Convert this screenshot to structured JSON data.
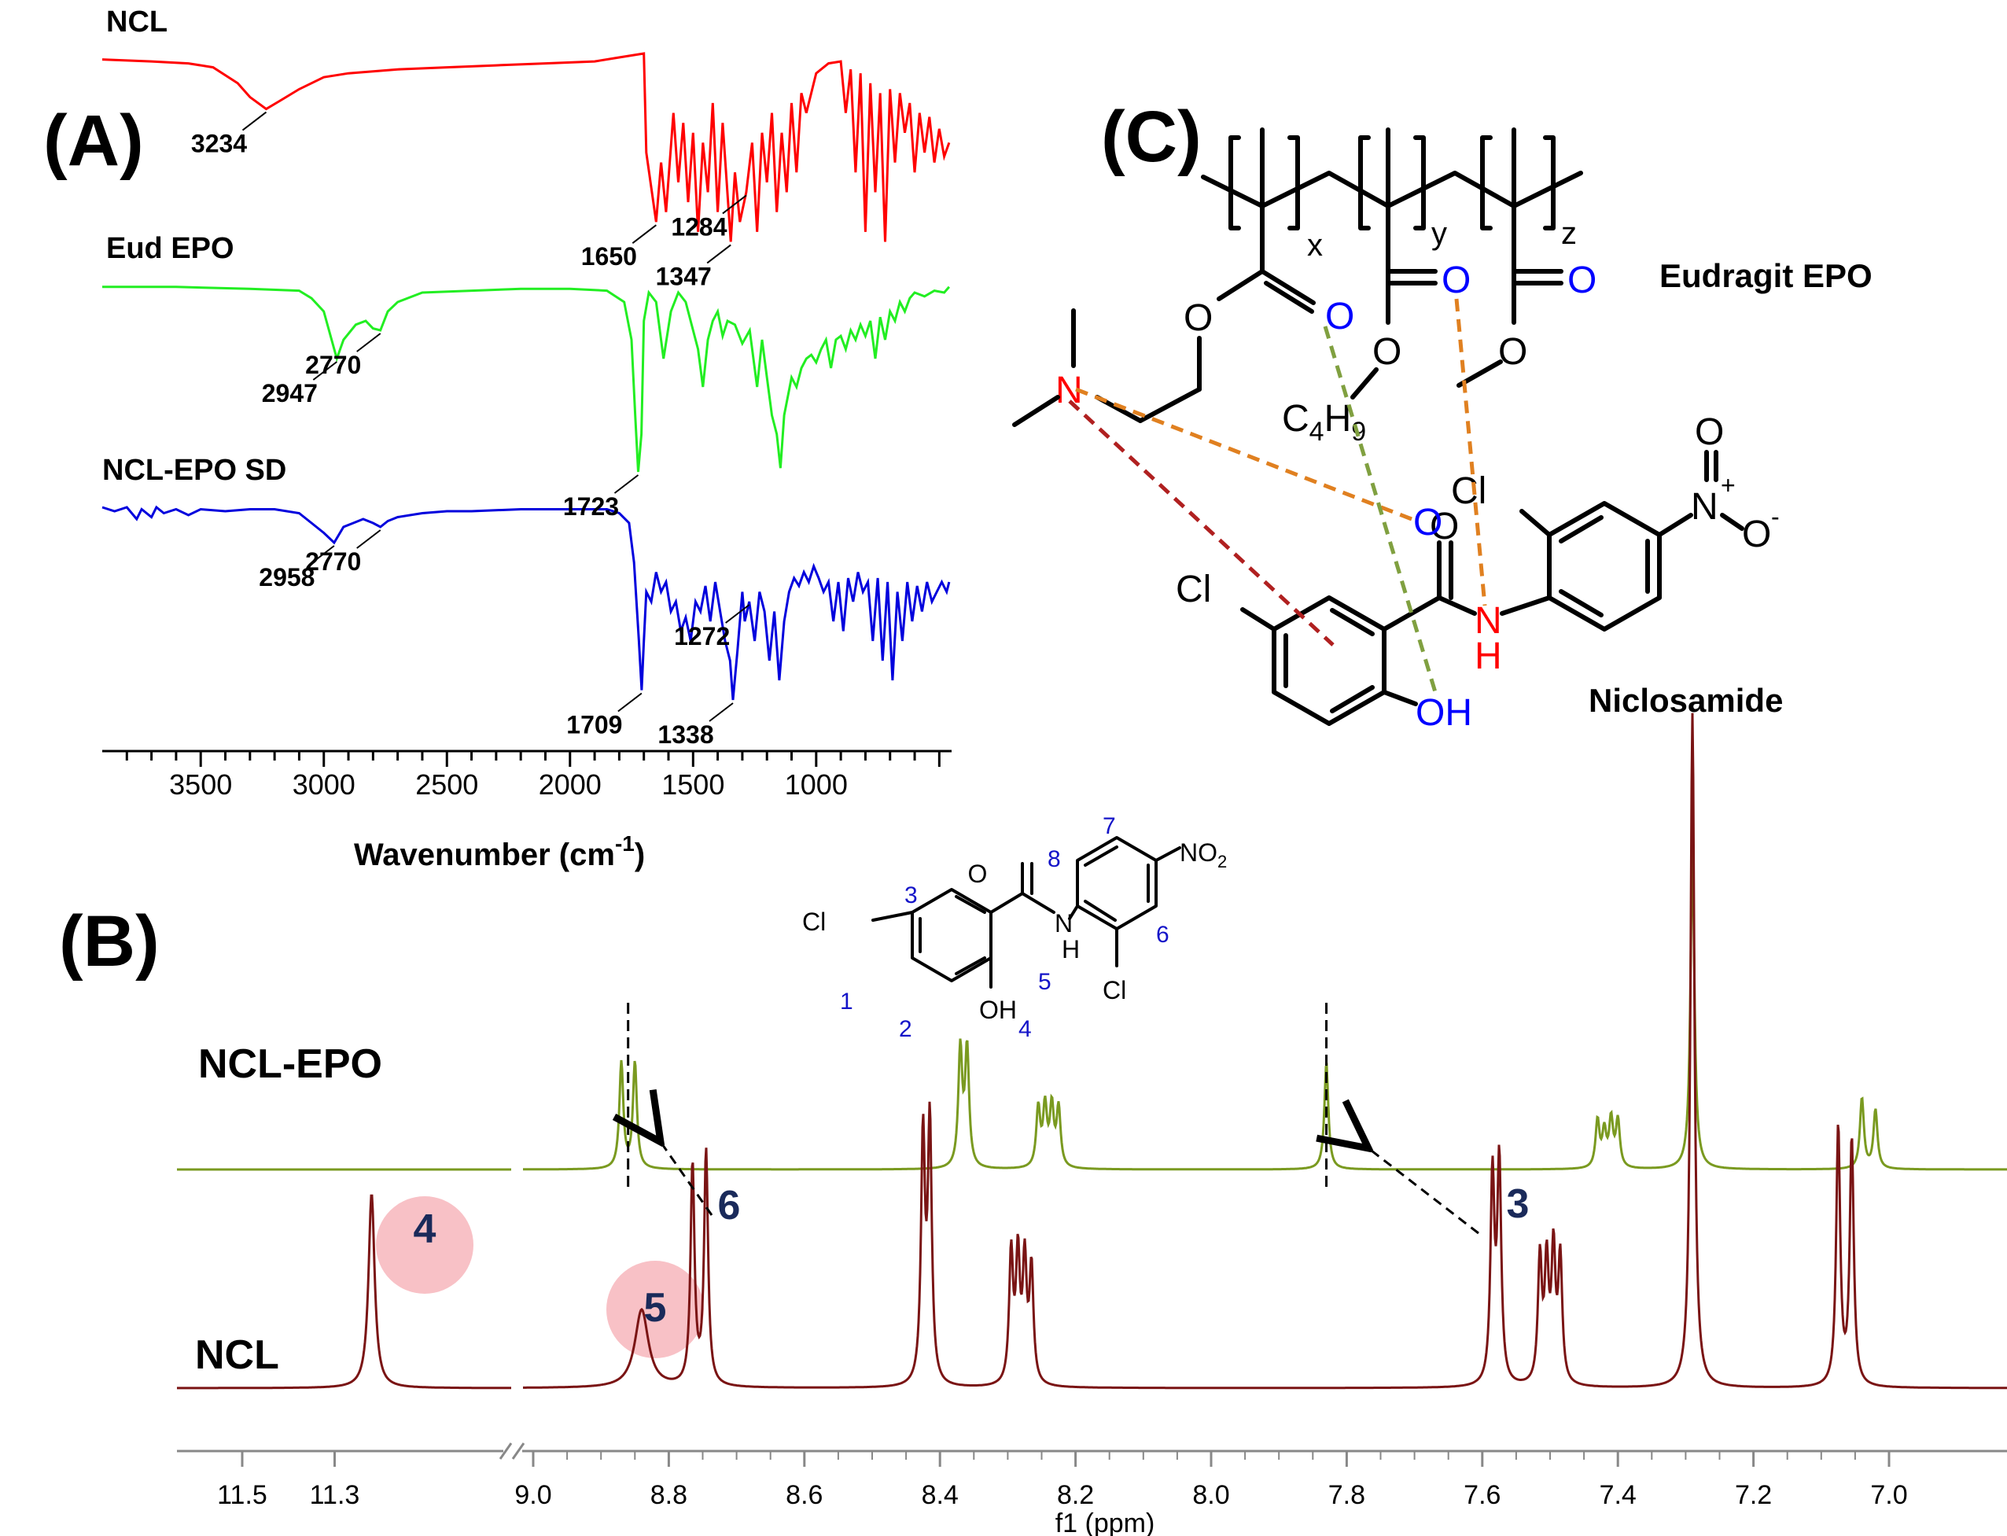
{
  "panels": {
    "A": "(A)",
    "B": "(B)",
    "C": "(C)"
  },
  "colors": {
    "ncl_ftir": "#ff0000",
    "epo_ftir": "#22ee22",
    "ncl_epo_ftir": "#0000dd",
    "nmr_ncl_epo": "#7a9a20",
    "nmr_ncl": "#7a1414",
    "label_blue": "#1414c8",
    "highlight_pink": "#f4a0a8",
    "interaction_orange": "#e08020",
    "interaction_green": "#80a040",
    "interaction_darkred": "#b02020"
  },
  "chart_data": [
    {
      "type": "line",
      "panel": "A",
      "xlabel_main": "Wavenumber (cm",
      "xlabel_sup": "-1",
      "xlabel_end": ")",
      "xlim": [
        3900,
        450
      ],
      "x_reversed": true,
      "x_ticks": [
        3500,
        3000,
        2500,
        2000,
        1500,
        1000
      ],
      "x_tick_labels": [
        "3500",
        "3000",
        "2500",
        "2000",
        "1500",
        "1000"
      ],
      "series": [
        {
          "name": "NCL",
          "color": "#ff0000",
          "x": [
            3900,
            3700,
            3550,
            3450,
            3350,
            3300,
            3234,
            3180,
            3100,
            3000,
            2900,
            2700,
            2500,
            2300,
            2100,
            1900,
            1800,
            1750,
            1700,
            1690,
            1650,
            1630,
            1610,
            1580,
            1560,
            1540,
            1520,
            1500,
            1480,
            1460,
            1440,
            1420,
            1400,
            1380,
            1347,
            1330,
            1310,
            1284,
            1260,
            1240,
            1220,
            1200,
            1180,
            1160,
            1140,
            1120,
            1100,
            1080,
            1060,
            1040,
            1000,
            950,
            900,
            880,
            860,
            840,
            820,
            800,
            780,
            760,
            740,
            720,
            700,
            680,
            660,
            640,
            620,
            600,
            580,
            560,
            540,
            520,
            500,
            480,
            460
          ],
          "y": [
            0.97,
            0.96,
            0.95,
            0.93,
            0.85,
            0.78,
            0.72,
            0.76,
            0.82,
            0.88,
            0.9,
            0.92,
            0.93,
            0.94,
            0.95,
            0.96,
            0.98,
            0.99,
            1.0,
            0.5,
            0.15,
            0.45,
            0.2,
            0.7,
            0.35,
            0.65,
            0.25,
            0.6,
            0.1,
            0.55,
            0.3,
            0.75,
            0.2,
            0.65,
            0.05,
            0.4,
            0.15,
            0.3,
            0.55,
            0.1,
            0.6,
            0.35,
            0.7,
            0.2,
            0.6,
            0.3,
            0.75,
            0.4,
            0.8,
            0.7,
            0.9,
            0.95,
            0.96,
            0.7,
            0.92,
            0.4,
            0.9,
            0.1,
            0.85,
            0.3,
            0.8,
            0.05,
            0.82,
            0.45,
            0.8,
            0.6,
            0.75,
            0.4,
            0.7,
            0.5,
            0.68,
            0.45,
            0.62,
            0.48,
            0.55
          ]
        },
        {
          "name": "Eud EPO",
          "color": "#22ee22",
          "x": [
            3900,
            3600,
            3300,
            3100,
            3050,
            3000,
            2947,
            2920,
            2870,
            2830,
            2800,
            2770,
            2740,
            2700,
            2600,
            2400,
            2200,
            2000,
            1850,
            1780,
            1750,
            1735,
            1723,
            1710,
            1700,
            1680,
            1650,
            1620,
            1590,
            1560,
            1530,
            1500,
            1480,
            1460,
            1440,
            1420,
            1400,
            1380,
            1360,
            1330,
            1300,
            1270,
            1240,
            1220,
            1200,
            1180,
            1160,
            1145,
            1130,
            1100,
            1080,
            1060,
            1040,
            1020,
            1000,
            980,
            960,
            940,
            920,
            900,
            880,
            860,
            840,
            820,
            800,
            780,
            760,
            740,
            720,
            700,
            680,
            660,
            640,
            620,
            600,
            560,
            520,
            480,
            460
          ],
          "y": [
            0.98,
            0.98,
            0.97,
            0.96,
            0.92,
            0.85,
            0.6,
            0.7,
            0.78,
            0.8,
            0.76,
            0.75,
            0.85,
            0.9,
            0.95,
            0.96,
            0.97,
            0.97,
            0.96,
            0.9,
            0.7,
            0.3,
            0.0,
            0.2,
            0.8,
            0.95,
            0.9,
            0.6,
            0.85,
            0.95,
            0.9,
            0.75,
            0.65,
            0.45,
            0.7,
            0.8,
            0.85,
            0.72,
            0.8,
            0.78,
            0.68,
            0.75,
            0.45,
            0.7,
            0.5,
            0.3,
            0.2,
            0.02,
            0.3,
            0.5,
            0.45,
            0.55,
            0.6,
            0.62,
            0.58,
            0.65,
            0.7,
            0.55,
            0.7,
            0.72,
            0.65,
            0.75,
            0.7,
            0.78,
            0.72,
            0.8,
            0.6,
            0.82,
            0.7,
            0.85,
            0.8,
            0.9,
            0.85,
            0.92,
            0.95,
            0.93,
            0.96,
            0.95,
            0.98
          ]
        },
        {
          "name": "NCL-EPO SD",
          "color": "#0000dd",
          "x": [
            3900,
            3850,
            3800,
            3760,
            3740,
            3700,
            3680,
            3650,
            3600,
            3550,
            3500,
            3400,
            3300,
            3200,
            3100,
            3050,
            3000,
            2958,
            2920,
            2880,
            2840,
            2800,
            2770,
            2740,
            2700,
            2600,
            2500,
            2400,
            2200,
            2000,
            1850,
            1800,
            1760,
            1740,
            1720,
            1709,
            1700,
            1690,
            1670,
            1650,
            1630,
            1610,
            1590,
            1570,
            1550,
            1530,
            1510,
            1490,
            1470,
            1450,
            1430,
            1410,
            1390,
            1370,
            1350,
            1338,
            1320,
            1300,
            1290,
            1272,
            1250,
            1230,
            1210,
            1190,
            1170,
            1150,
            1130,
            1110,
            1090,
            1070,
            1050,
            1030,
            1010,
            990,
            970,
            950,
            930,
            910,
            890,
            870,
            850,
            830,
            810,
            790,
            770,
            750,
            730,
            710,
            690,
            670,
            650,
            630,
            610,
            590,
            570,
            550,
            530,
            510,
            490,
            470,
            460
          ],
          "y": [
            0.98,
            0.96,
            0.98,
            0.92,
            0.97,
            0.93,
            0.98,
            0.95,
            0.97,
            0.94,
            0.97,
            0.96,
            0.97,
            0.97,
            0.95,
            0.9,
            0.85,
            0.8,
            0.88,
            0.9,
            0.92,
            0.9,
            0.88,
            0.91,
            0.93,
            0.95,
            0.96,
            0.96,
            0.97,
            0.97,
            0.97,
            0.95,
            0.9,
            0.7,
            0.3,
            0.05,
            0.3,
            0.55,
            0.5,
            0.65,
            0.55,
            0.6,
            0.45,
            0.5,
            0.35,
            0.42,
            0.3,
            0.5,
            0.45,
            0.58,
            0.4,
            0.6,
            0.45,
            0.3,
            0.2,
            0.0,
            0.25,
            0.55,
            0.4,
            0.5,
            0.3,
            0.55,
            0.45,
            0.2,
            0.45,
            0.1,
            0.4,
            0.55,
            0.62,
            0.58,
            0.65,
            0.6,
            0.68,
            0.62,
            0.55,
            0.6,
            0.4,
            0.6,
            0.35,
            0.62,
            0.5,
            0.65,
            0.55,
            0.6,
            0.3,
            0.62,
            0.2,
            0.6,
            0.1,
            0.55,
            0.3,
            0.6,
            0.4,
            0.58,
            0.45,
            0.6,
            0.5,
            0.55,
            0.6,
            0.55,
            0.6
          ]
        }
      ],
      "annotations": [
        {
          "series": "NCL",
          "x": 3234,
          "text": "3234"
        },
        {
          "series": "NCL",
          "x": 1650,
          "text": "1650"
        },
        {
          "series": "NCL",
          "x": 1347,
          "text": "1347"
        },
        {
          "series": "NCL",
          "x": 1284,
          "text": "1284"
        },
        {
          "series": "Eud EPO",
          "x": 2947,
          "text": "2947"
        },
        {
          "series": "Eud EPO",
          "x": 2770,
          "text": "2770"
        },
        {
          "series": "Eud EPO",
          "x": 1723,
          "text": "1723"
        },
        {
          "series": "NCL-EPO SD",
          "x": 2958,
          "text": "2958"
        },
        {
          "series": "NCL-EPO SD",
          "x": 2770,
          "text": "2770"
        },
        {
          "series": "NCL-EPO SD",
          "x": 1709,
          "text": "1709"
        },
        {
          "series": "NCL-EPO SD",
          "x": 1338,
          "text": "1338"
        },
        {
          "series": "NCL-EPO SD",
          "x": 1272,
          "text": "1272"
        }
      ]
    },
    {
      "type": "line",
      "panel": "B",
      "xlabel": "f1 (ppm)",
      "x_reversed": true,
      "axis_break": [
        11.1,
        9.1
      ],
      "x_ticks": [
        11.5,
        11.3,
        9.0,
        8.8,
        8.6,
        8.4,
        8.2,
        8.0,
        7.8,
        7.6,
        7.4,
        7.2,
        7.0
      ],
      "x_tick_labels": [
        "11.5",
        "11.3",
        "9.0",
        "8.8",
        "8.6",
        "8.4",
        "8.2",
        "8.0",
        "7.8",
        "7.6",
        "7.4",
        "7.2",
        "7.0"
      ],
      "series": [
        {
          "name": "NCL-EPO",
          "color": "#7a9a20",
          "peaks": [
            [
              8.87,
              0.45
            ],
            [
              8.85,
              0.45
            ],
            [
              8.37,
              0.5
            ],
            [
              8.36,
              0.5
            ],
            [
              8.255,
              0.25
            ],
            [
              8.245,
              0.25
            ],
            [
              8.235,
              0.25
            ],
            [
              8.225,
              0.25
            ],
            [
              7.83,
              0.45
            ],
            [
              7.43,
              0.2
            ],
            [
              7.42,
              0.15
            ],
            [
              7.41,
              0.2
            ],
            [
              7.4,
              0.2
            ],
            [
              7.29,
              1.35
            ],
            [
              7.04,
              0.3
            ],
            [
              7.02,
              0.25
            ]
          ]
        },
        {
          "name": "NCL",
          "color": "#7a1414",
          "peaks": [
            [
              11.22,
              0.75
            ],
            [
              8.84,
              0.3
            ],
            [
              8.765,
              0.85
            ],
            [
              8.745,
              0.9
            ],
            [
              8.425,
              0.95
            ],
            [
              8.415,
              1.0
            ],
            [
              8.295,
              0.5
            ],
            [
              8.285,
              0.48
            ],
            [
              8.275,
              0.46
            ],
            [
              8.265,
              0.44
            ],
            [
              7.585,
              0.8
            ],
            [
              7.575,
              0.85
            ],
            [
              7.515,
              0.48
            ],
            [
              7.505,
              0.45
            ],
            [
              7.495,
              0.5
            ],
            [
              7.485,
              0.48
            ],
            [
              7.29,
              2.6
            ],
            [
              7.075,
              1.0
            ],
            [
              7.055,
              0.95
            ]
          ]
        }
      ],
      "peak_labels": [
        {
          "text": "4",
          "x": 11.22,
          "highlight": true
        },
        {
          "text": "5",
          "x": 8.84,
          "highlight": true
        },
        {
          "text": "6",
          "x": 8.74,
          "highlight": false
        },
        {
          "text": "3",
          "x": 7.55,
          "highlight": false
        }
      ],
      "reference_lines_ppm": [
        8.86,
        7.83
      ]
    }
  ],
  "ftir_labels": {
    "ncl": "NCL",
    "epo": "Eud EPO",
    "sd": "NCL-EPO SD"
  },
  "nmr_labels": {
    "top": "NCL-EPO",
    "bottom": "NCL"
  },
  "structure_B": {
    "cl1": "Cl",
    "cl2": "Cl",
    "o": "O",
    "nh": "N",
    "h": "H",
    "oh": "OH",
    "no2": "NO",
    "no2_sub": "2",
    "num1": "1",
    "num2": "2",
    "num3": "3",
    "num4": "4",
    "num5": "5",
    "num6": "6",
    "num7": "7",
    "num8": "8"
  },
  "structure_C": {
    "eudragit_label": "Eudragit EPO",
    "niclosamide_label": "Niclosamide",
    "sub_x": "x",
    "sub_y": "y",
    "sub_z": "z",
    "o_carbonyl1": "O",
    "o_carbonyl2": "O",
    "o_carbonyl3": "O",
    "o_ester1": "O",
    "o_ester2": "O",
    "o_ester3": "O",
    "n_amine": "N",
    "c4h9_c": "C",
    "c4h9_4": "4",
    "c4h9_h": "H",
    "c4h9_9": "9",
    "ncl_o": "O",
    "ncl_n": "N",
    "ncl_h": "H",
    "ncl_oh": "OH",
    "ncl_cl1": "Cl",
    "ncl_cl2": "Cl",
    "nitro_n": "N",
    "nitro_plus": "+",
    "nitro_o1": "O",
    "nitro_o2": "O",
    "nitro_minus": "-"
  }
}
